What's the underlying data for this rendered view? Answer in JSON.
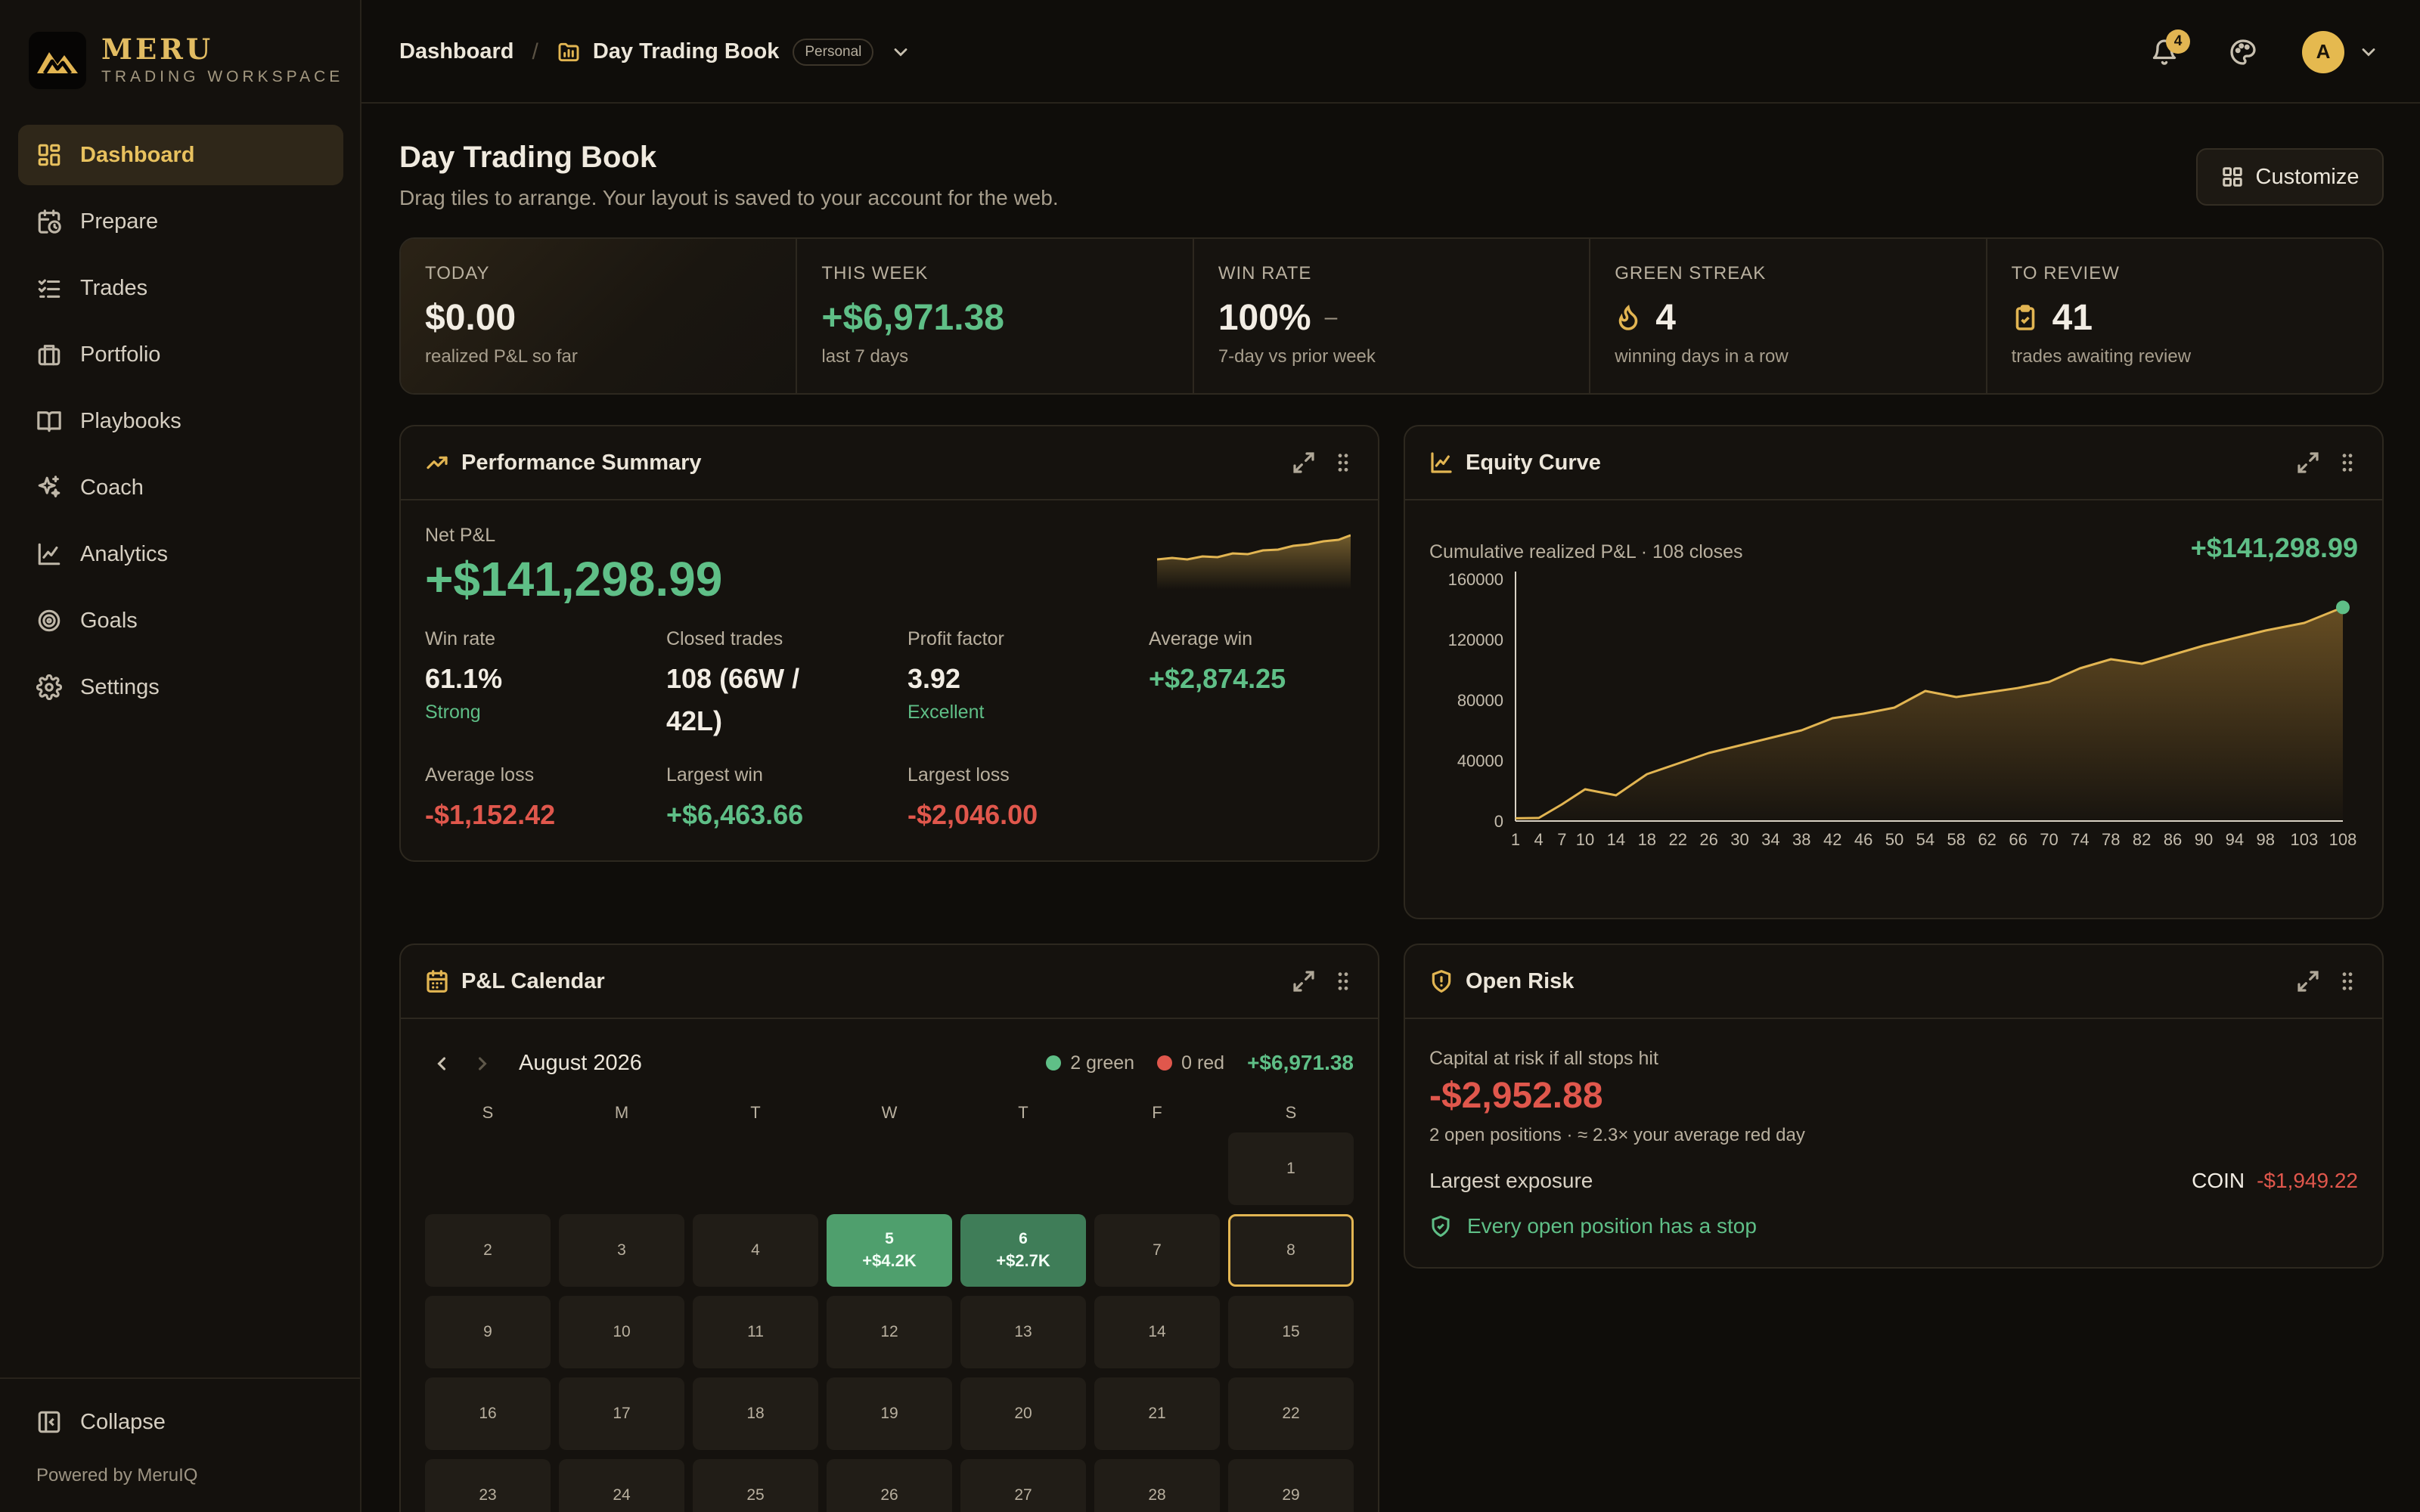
{
  "brand": {
    "name": "MERU",
    "subtitle": "TRADING WORKSPACE"
  },
  "sidebar": {
    "items": [
      {
        "label": "Dashboard",
        "icon": "dashboard-icon",
        "active": true
      },
      {
        "label": "Prepare",
        "icon": "calendar-clock-icon"
      },
      {
        "label": "Trades",
        "icon": "list-check-icon"
      },
      {
        "label": "Portfolio",
        "icon": "briefcase-icon"
      },
      {
        "label": "Playbooks",
        "icon": "book-icon"
      },
      {
        "label": "Coach",
        "icon": "sparkles-icon"
      },
      {
        "label": "Analytics",
        "icon": "line-chart-icon"
      },
      {
        "label": "Goals",
        "icon": "target-icon"
      },
      {
        "label": "Settings",
        "icon": "gear-icon"
      }
    ],
    "collapse_label": "Collapse",
    "powered_by": "Powered by MeruIQ"
  },
  "topbar": {
    "breadcrumb_home": "Dashboard",
    "breadcrumb_sep": "/",
    "book_name": "Day Trading Book",
    "book_badge": "Personal",
    "notification_count": "4",
    "avatar_initial": "A"
  },
  "page": {
    "title": "Day Trading Book",
    "subtitle": "Drag tiles to arrange. Your layout is saved to your account for the web.",
    "customize_label": "Customize"
  },
  "stats": [
    {
      "label": "TODAY",
      "value": "$0.00",
      "caption": "realized P&L so far"
    },
    {
      "label": "THIS WEEK",
      "value": "+$6,971.38",
      "caption": "last 7 days"
    },
    {
      "label": "WIN RATE",
      "value": "100%",
      "trend": "–",
      "caption": "7-day vs prior week"
    },
    {
      "label": "GREEN STREAK",
      "value": "4",
      "icon": "flame-icon",
      "caption": "winning days in a row"
    },
    {
      "label": "TO REVIEW",
      "value": "41",
      "icon": "clipboard-check-icon",
      "caption": "trades awaiting review"
    }
  ],
  "performance": {
    "title": "Performance Summary",
    "net_label": "Net P&L",
    "net_value": "+$141,298.99",
    "metrics": [
      {
        "label": "Win rate",
        "value": "61.1%",
        "sub": "Strong"
      },
      {
        "label": "Closed trades",
        "value": "108 (66W / 42L)",
        "sub": ""
      },
      {
        "label": "Profit factor",
        "value": "3.92",
        "sub": "Excellent"
      },
      {
        "label": "Average win",
        "value": "+$2,874.25",
        "sub": ""
      },
      {
        "label": "Average loss",
        "value": "-$1,152.42",
        "sub": ""
      },
      {
        "label": "Largest win",
        "value": "+$6,463.66",
        "sub": ""
      },
      {
        "label": "Largest loss",
        "value": "-$2,046.00",
        "sub": ""
      }
    ]
  },
  "equity": {
    "title": "Equity Curve",
    "label": "Cumulative realized P&L · 108 closes",
    "total": "+$141,298.99"
  },
  "chart_data": {
    "type": "area",
    "title": "",
    "xlabel": "",
    "ylabel": "",
    "ylim": [
      0,
      160000
    ],
    "yticks": [
      0,
      40000,
      80000,
      120000,
      160000
    ],
    "xticks": [
      1,
      4,
      7,
      10,
      14,
      18,
      22,
      26,
      30,
      34,
      38,
      42,
      46,
      50,
      54,
      58,
      62,
      66,
      70,
      74,
      78,
      82,
      86,
      90,
      94,
      98,
      103,
      108
    ],
    "grid": false,
    "series": [
      {
        "x": [
          1,
          4,
          7,
          10,
          14,
          18,
          22,
          26,
          30,
          34,
          38,
          42,
          46,
          50,
          54,
          58,
          62,
          66,
          70,
          74,
          78,
          82,
          86,
          90,
          94,
          98,
          103,
          108
        ],
        "values": [
          1800,
          2000,
          11000,
          21000,
          17000,
          31000,
          38000,
          45000,
          50000,
          55000,
          60000,
          68000,
          71000,
          75000,
          86000,
          82000,
          85000,
          88000,
          92000,
          101000,
          107000,
          104000,
          110000,
          116000,
          121000,
          126000,
          131000,
          141299
        ]
      }
    ]
  },
  "calendar": {
    "title": "P&L Calendar",
    "month": "August 2026",
    "green_label": "2 green",
    "red_label": "0 red",
    "total": "+$6,971.38",
    "dow": [
      "S",
      "M",
      "T",
      "W",
      "T",
      "F",
      "S"
    ],
    "weeks": [
      [
        {
          "d": ""
        },
        {
          "d": ""
        },
        {
          "d": ""
        },
        {
          "d": ""
        },
        {
          "d": ""
        },
        {
          "d": ""
        },
        {
          "d": "1"
        }
      ],
      [
        {
          "d": "2"
        },
        {
          "d": "3"
        },
        {
          "d": "4"
        },
        {
          "d": "5",
          "pnl": "+$4.2K",
          "state": "win"
        },
        {
          "d": "6",
          "pnl": "+$2.7K",
          "state": "win2"
        },
        {
          "d": "7"
        },
        {
          "d": "8",
          "state": "today"
        }
      ],
      [
        {
          "d": "9"
        },
        {
          "d": "10"
        },
        {
          "d": "11"
        },
        {
          "d": "12"
        },
        {
          "d": "13"
        },
        {
          "d": "14"
        },
        {
          "d": "15"
        }
      ],
      [
        {
          "d": "16"
        },
        {
          "d": "17"
        },
        {
          "d": "18"
        },
        {
          "d": "19"
        },
        {
          "d": "20"
        },
        {
          "d": "21"
        },
        {
          "d": "22"
        }
      ],
      [
        {
          "d": "23"
        },
        {
          "d": "24"
        },
        {
          "d": "25"
        },
        {
          "d": "26"
        },
        {
          "d": "27"
        },
        {
          "d": "28"
        },
        {
          "d": "29"
        }
      ]
    ]
  },
  "risk": {
    "title": "Open Risk",
    "label": "Capital at risk if all stops hit",
    "value": "-$2,952.88",
    "sub": "2 open positions · ≈ 2.3× your average red day",
    "exposure_label": "Largest exposure",
    "exposure_symbol": "COIN",
    "exposure_amount": "-$1,949.22",
    "stop_status": "Every open position has a stop"
  },
  "colors": {
    "accent": "#e2b552",
    "green": "#5fbf87",
    "red": "#e0574c",
    "background": "#0f0d0a"
  }
}
